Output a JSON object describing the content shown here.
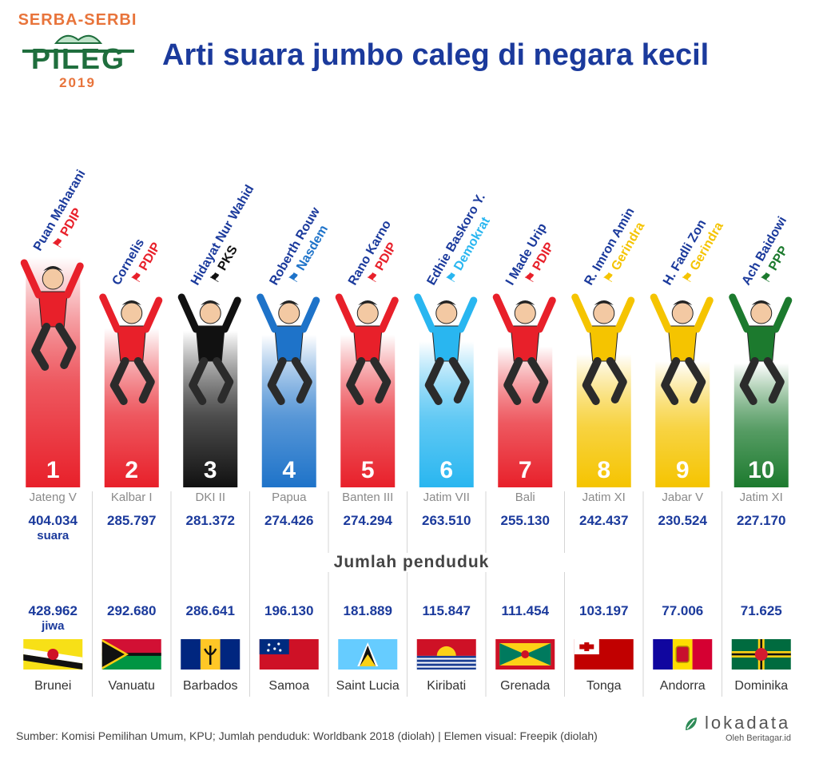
{
  "header": {
    "logo_top": "SERBA-SERBI",
    "logo_main": "PILEG",
    "logo_year": "2019",
    "title": "Arti suara jumbo caleg di negara kecil"
  },
  "labels": {
    "votes_unit": "suara",
    "population_heading": "Jumlah penduduk",
    "population_unit": "jiwa"
  },
  "footer": {
    "source": "Sumber: Komisi Pemilihan Umum, KPU; Jumlah penduduk: Worldbank 2018 (diolah) | Elemen visual: Freepik (diolah)",
    "brand_name": "lokadata",
    "brand_sub": "Oleh Beritagar.id"
  },
  "colors": {
    "title": "#1b3a9c",
    "value_text": "#1b3a9c",
    "region_text": "#8a8a8a",
    "PDIP": "#e8202a",
    "PKS": "#111111",
    "Nasdem": "#1e73c9",
    "Demokrat": "#29b6f0",
    "Gerindra": "#f5c400",
    "PPP": "#1c7a2e"
  },
  "chart_data": {
    "type": "bar",
    "title": "Arti suara jumbo caleg di negara kecil",
    "ylabel": "",
    "categories": [
      "1",
      "2",
      "3",
      "4",
      "5",
      "6",
      "7",
      "8",
      "9",
      "10"
    ],
    "series": [
      {
        "name": "suara",
        "values": [
          404034,
          285797,
          281372,
          274426,
          274294,
          263510,
          255130,
          242437,
          230524,
          227170
        ]
      }
    ],
    "candidates": [
      {
        "rank": "1",
        "name": "Puan Maharani",
        "party": "PDIP",
        "region": "Jateng V",
        "votes": "404.034",
        "population": "428.962",
        "country": "Brunei",
        "flag": "brunei-flag-icon"
      },
      {
        "rank": "2",
        "name": "Cornelis",
        "party": "PDIP",
        "region": "Kalbar I",
        "votes": "285.797",
        "population": "292.680",
        "country": "Vanuatu",
        "flag": "vanuatu-flag-icon"
      },
      {
        "rank": "3",
        "name": "Hidayat Nur Wahid",
        "party": "PKS",
        "region": "DKI II",
        "votes": "281.372",
        "population": "286.641",
        "country": "Barbados",
        "flag": "barbados-flag-icon"
      },
      {
        "rank": "4",
        "name": "Roberth Rouw",
        "party": "Nasdem",
        "region": "Papua",
        "votes": "274.426",
        "population": "196.130",
        "country": "Samoa",
        "flag": "samoa-flag-icon"
      },
      {
        "rank": "5",
        "name": "Rano Karno",
        "party": "PDIP",
        "region": "Banten III",
        "votes": "274.294",
        "population": "181.889",
        "country": "Saint Lucia",
        "flag": "saint-lucia-flag-icon"
      },
      {
        "rank": "6",
        "name": "Edhie Baskoro Y.",
        "party": "Demokrat",
        "region": "Jatim VII",
        "votes": "263.510",
        "population": "115.847",
        "country": "Kiribati",
        "flag": "kiribati-flag-icon"
      },
      {
        "rank": "7",
        "name": "I Made Urip",
        "party": "PDIP",
        "region": "Bali",
        "votes": "255.130",
        "population": "111.454",
        "country": "Grenada",
        "flag": "grenada-flag-icon"
      },
      {
        "rank": "8",
        "name": "R. Imron Amin",
        "party": "Gerindra",
        "region": "Jatim XI",
        "votes": "242.437",
        "population": "103.197",
        "country": "Tonga",
        "flag": "tonga-flag-icon"
      },
      {
        "rank": "9",
        "name": "H. Fadli Zon",
        "party": "Gerindra",
        "region": "Jabar V",
        "votes": "230.524",
        "population": "77.006",
        "country": "Andorra",
        "flag": "andorra-flag-icon"
      },
      {
        "rank": "10",
        "name": "Ach Baidowi",
        "party": "PPP",
        "region": "Jatim XI",
        "votes": "227.170",
        "population": "71.625",
        "country": "Dominika",
        "flag": "dominica-flag-icon"
      }
    ]
  }
}
